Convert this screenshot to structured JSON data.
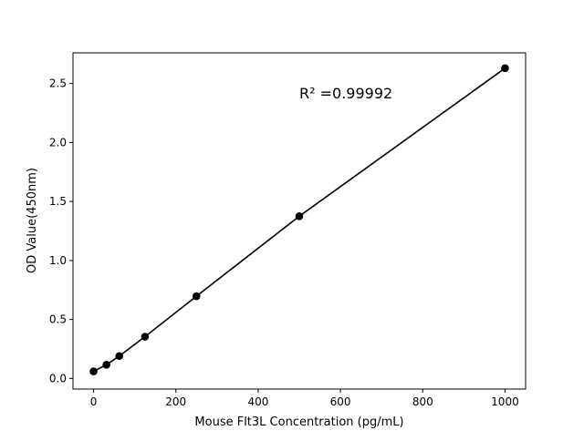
{
  "chart_data": {
    "type": "line",
    "title": "",
    "xlabel": "Mouse Flt3L Concentration (pg/mL)",
    "ylabel": "OD Value(450nm)",
    "xlim": [
      -50,
      1050
    ],
    "ylim": [
      -0.09,
      2.76
    ],
    "xticks": [
      0,
      200,
      400,
      600,
      800,
      1000
    ],
    "xtick_labels": [
      "0",
      "200",
      "400",
      "600",
      "800",
      "1000"
    ],
    "yticks": [
      0.0,
      0.5,
      1.0,
      1.5,
      2.0,
      2.5
    ],
    "ytick_labels": [
      "0.0",
      "0.5",
      "1.0",
      "1.5",
      "2.0",
      "2.5"
    ],
    "grid": false,
    "series": [
      {
        "x": [
          0,
          31.25,
          62.5,
          125,
          250,
          500,
          1000
        ],
        "y": [
          0.06,
          0.116,
          0.19,
          0.354,
          0.697,
          1.375,
          2.63
        ],
        "color": "#000000",
        "marker": "circle"
      }
    ],
    "annotation": {
      "text": "R² =0.99992",
      "x": 500,
      "y": 2.41
    }
  }
}
